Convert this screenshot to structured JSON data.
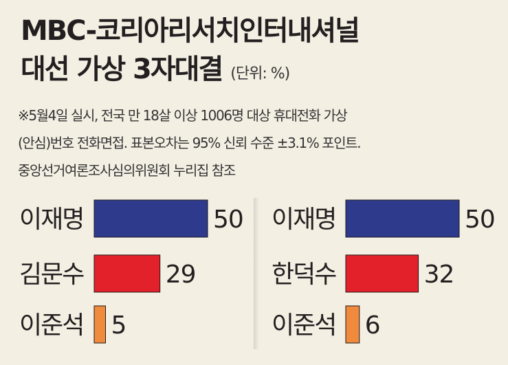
{
  "header": {
    "title_line1": "MBC-코리아리서치인터내셔널",
    "title_line2": "대선 가상 3자대결",
    "unit": "(단위: %)"
  },
  "note": {
    "line1": "※5월4일 실시, 전국 만 18살 이상 1006명 대상 휴대전화 가상",
    "line2": "(안심)번호 전화면접. 표본오차는 95% 신뢰 수준 ±3.1% 포인트.",
    "line3": "중앙선거여론조사심의위원회 누리집 참조"
  },
  "chart_data": [
    {
      "type": "bar",
      "orientation": "horizontal",
      "categories": [
        "이재명",
        "김문수",
        "이준석"
      ],
      "values": [
        50,
        29,
        5
      ],
      "colors": [
        "#2e3a8c",
        "#e2212a",
        "#f08a3c"
      ]
    },
    {
      "type": "bar",
      "orientation": "horizontal",
      "categories": [
        "이재명",
        "한덕수",
        "이준석"
      ],
      "values": [
        50,
        32,
        6
      ],
      "colors": [
        "#2e3a8c",
        "#e2212a",
        "#f08a3c"
      ]
    }
  ]
}
